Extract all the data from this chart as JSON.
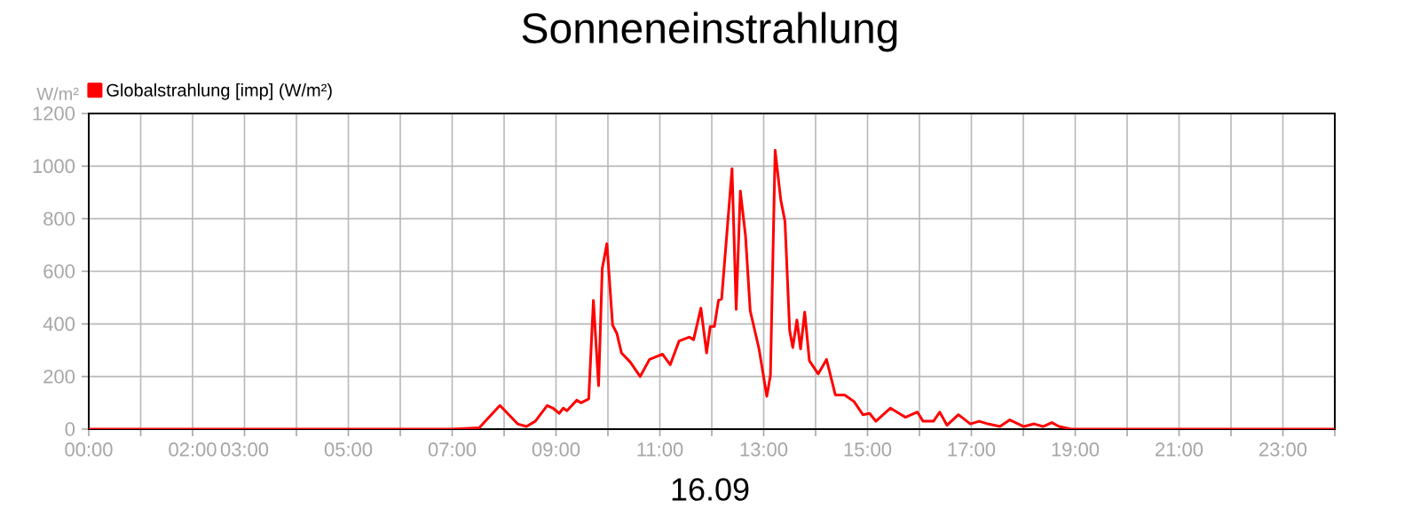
{
  "chart_data": {
    "type": "line",
    "title": "Sonneneinstrahlung",
    "xlabel": "16.09",
    "ylabel": "W/m²",
    "xlim": [
      0,
      24
    ],
    "ylim": [
      0,
      1200
    ],
    "yticks": [
      0,
      200,
      400,
      600,
      800,
      1000,
      1200
    ],
    "xticks": [
      {
        "value": 0,
        "label": "00:00"
      },
      {
        "value": 1,
        "label": null
      },
      {
        "value": 2,
        "label": "02:00"
      },
      {
        "value": 3,
        "label": "03:00"
      },
      {
        "value": 4,
        "label": null
      },
      {
        "value": 5,
        "label": "05:00"
      },
      {
        "value": 6,
        "label": null
      },
      {
        "value": 7,
        "label": "07:00"
      },
      {
        "value": 8,
        "label": null
      },
      {
        "value": 9,
        "label": "09:00"
      },
      {
        "value": 10,
        "label": null
      },
      {
        "value": 11,
        "label": "11:00"
      },
      {
        "value": 12,
        "label": null
      },
      {
        "value": 13,
        "label": "13:00"
      },
      {
        "value": 14,
        "label": null
      },
      {
        "value": 15,
        "label": "15:00"
      },
      {
        "value": 16,
        "label": null
      },
      {
        "value": 17,
        "label": "17:00"
      },
      {
        "value": 18,
        "label": null
      },
      {
        "value": 19,
        "label": "19:00"
      },
      {
        "value": 20,
        "label": null
      },
      {
        "value": 21,
        "label": "21:00"
      },
      {
        "value": 22,
        "label": null
      },
      {
        "value": 23,
        "label": "23:00"
      },
      {
        "value": 24,
        "label": null
      }
    ],
    "grid": true,
    "legend": "top left",
    "marker": "none",
    "line_style": "solid",
    "series": [
      {
        "name": "Globalstrahlung [imp] (W/m²)",
        "color": "#ff0000",
        "x": [
          0,
          7.0,
          7.52,
          7.92,
          8.26,
          8.43,
          8.6,
          8.83,
          8.94,
          9.06,
          9.14,
          9.21,
          9.4,
          9.48,
          9.63,
          9.72,
          9.82,
          9.89,
          9.98,
          10.09,
          10.17,
          10.26,
          10.43,
          10.62,
          10.8,
          11.05,
          11.2,
          11.37,
          11.57,
          11.65,
          11.79,
          11.9,
          11.97,
          12.05,
          12.13,
          12.19,
          12.39,
          12.47,
          12.55,
          12.65,
          12.74,
          12.91,
          13.06,
          13.13,
          13.22,
          13.33,
          13.41,
          13.5,
          13.56,
          13.64,
          13.71,
          13.79,
          13.88,
          14.05,
          14.21,
          14.38,
          14.56,
          14.74,
          14.91,
          15.04,
          15.16,
          15.44,
          15.73,
          15.96,
          16.07,
          16.27,
          16.39,
          16.53,
          16.75,
          16.98,
          17.15,
          17.32,
          17.55,
          17.74,
          18.01,
          18.21,
          18.38,
          18.55,
          18.69,
          18.92,
          24
        ],
        "values": [
          0,
          0,
          5,
          90,
          20,
          10,
          30,
          90,
          80,
          60,
          80,
          70,
          110,
          100,
          115,
          490,
          165,
          610,
          705,
          395,
          365,
          290,
          255,
          200,
          265,
          285,
          245,
          335,
          350,
          340,
          460,
          290,
          390,
          390,
          490,
          495,
          990,
          455,
          905,
          735,
          450,
          305,
          125,
          205,
          1060,
          870,
          790,
          375,
          310,
          415,
          305,
          445,
          260,
          210,
          265,
          130,
          130,
          105,
          55,
          60,
          30,
          80,
          45,
          65,
          30,
          30,
          65,
          15,
          55,
          20,
          30,
          20,
          10,
          35,
          10,
          20,
          10,
          25,
          10,
          0,
          0
        ]
      }
    ]
  }
}
